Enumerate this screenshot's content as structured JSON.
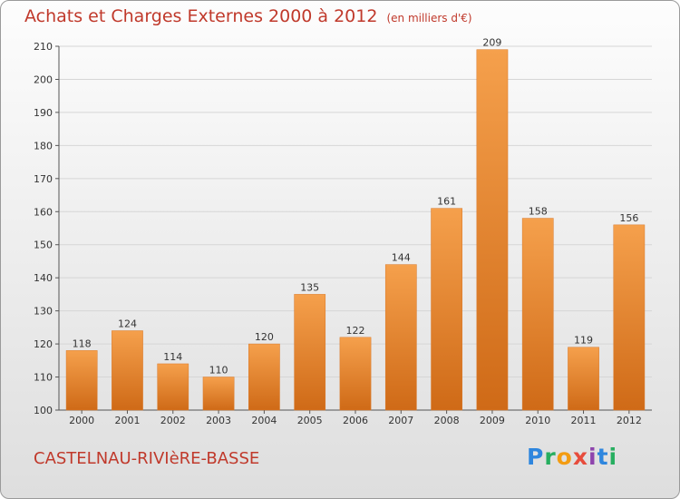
{
  "chart_data": {
    "type": "bar",
    "title": "Achats et Charges Externes 2000 à 2012",
    "unit": "(en milliers d'€)",
    "categories": [
      "2000",
      "2001",
      "2002",
      "2003",
      "2004",
      "2005",
      "2006",
      "2007",
      "2008",
      "2009",
      "2010",
      "2011",
      "2012"
    ],
    "values": [
      118,
      124,
      114,
      110,
      120,
      135,
      122,
      144,
      161,
      209,
      158,
      119,
      156
    ],
    "ylim": [
      100,
      210
    ],
    "yticks": [
      100,
      110,
      120,
      130,
      140,
      150,
      160,
      170,
      180,
      190,
      200,
      210
    ],
    "grid": true,
    "bar_color_top": "#f5a04c",
    "bar_color_bottom": "#cf6a17"
  },
  "commune": "CASTELNAU-RIVIèRE-BASSE",
  "logo": {
    "text": "Proxiti"
  }
}
